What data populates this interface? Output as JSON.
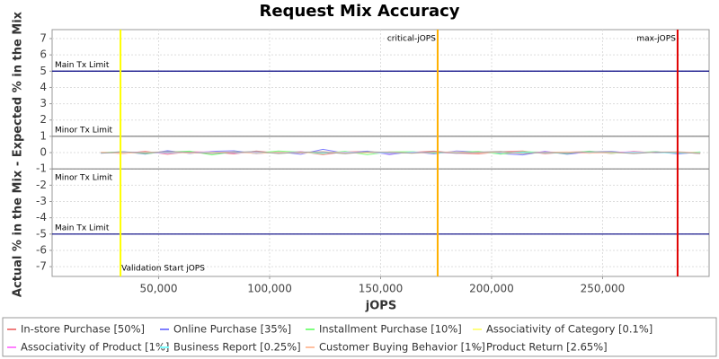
{
  "chart_data": {
    "type": "line",
    "title": "Request Mix Accuracy",
    "x_label": "jOPS",
    "y_label": "Actual % in the Mix - Expected % in the Mix",
    "x": [
      24000,
      34000,
      44000,
      54000,
      64000,
      74000,
      84000,
      94000,
      104000,
      114000,
      124000,
      134000,
      144000,
      154000,
      164000,
      174000,
      184000,
      194000,
      204000,
      214000,
      224000,
      234000,
      244000,
      254000,
      264000,
      274000,
      284000,
      294000
    ],
    "series": [
      {
        "name": "In-store Purchase [50%]",
        "color": "#f08080",
        "values": [
          0.02,
          -0.05,
          0.08,
          -0.1,
          0.05,
          0.03,
          -0.08,
          0.1,
          -0.04,
          0.06,
          -0.12,
          0.04,
          0.07,
          -0.06,
          0.02,
          0.09,
          -0.03,
          -0.08,
          0.05,
          0.1,
          -0.07,
          0.03,
          0.06,
          -0.05,
          0.08,
          -0.02,
          0.04,
          -0.06
        ]
      },
      {
        "name": "Online Purchase [35%]",
        "color": "#8080ff",
        "values": [
          -0.03,
          0.06,
          -0.09,
          0.12,
          -0.05,
          0.08,
          0.11,
          -0.07,
          0.05,
          -0.1,
          0.2,
          -0.04,
          0.09,
          -0.12,
          0.06,
          -0.08,
          0.1,
          0.04,
          -0.06,
          -0.14,
          0.08,
          -0.1,
          0.05,
          0.07,
          -0.04,
          0.06,
          -0.08,
          0.03
        ]
      },
      {
        "name": "Installment Purchase [10%]",
        "color": "#80ff80",
        "values": [
          0.01,
          0.04,
          -0.06,
          0.03,
          0.09,
          -0.14,
          0.05,
          -0.02,
          0.1,
          0.03,
          -0.05,
          0.08,
          -0.13,
          0.04,
          0.06,
          -0.03,
          0.02,
          0.07,
          -0.09,
          0.05,
          0.03,
          -0.06,
          0.09,
          -0.04,
          0.02,
          0.05,
          -0.03,
          0.04
        ]
      },
      {
        "name": "Associativity of Category [0.1%]",
        "color": "#ffff80",
        "values": [
          0.0,
          0.01,
          -0.01,
          0.02,
          0.0,
          -0.02,
          0.01,
          0.0,
          0.02,
          -0.01,
          0.0,
          0.01,
          -0.02,
          0.0,
          0.01,
          0.02,
          -0.01,
          0.0,
          0.01,
          -0.02,
          0.0,
          0.01,
          0.02,
          -0.01,
          0.0,
          0.01,
          -0.01,
          0.0
        ]
      },
      {
        "name": "Associativity of Product [1%]",
        "color": "#ff80ff",
        "values": [
          -0.02,
          0.03,
          0.01,
          -0.04,
          0.02,
          0.05,
          -0.03,
          0.02,
          -0.01,
          0.04,
          -0.02,
          0.03,
          0.01,
          -0.05,
          0.03,
          0.02,
          -0.04,
          0.01,
          0.03,
          -0.02,
          0.04,
          0.01,
          -0.03,
          0.02,
          0.05,
          -0.01,
          0.02,
          -0.03
        ]
      },
      {
        "name": "Business Report [0.25%]",
        "color": "#80ffff",
        "values": [
          0.01,
          -0.02,
          0.02,
          0.0,
          -0.01,
          0.03,
          0.0,
          -0.02,
          0.01,
          0.02,
          -0.01,
          0.0,
          0.02,
          -0.02,
          0.01,
          0.0,
          0.03,
          -0.01,
          0.0,
          0.02,
          -0.02,
          0.01,
          0.0,
          -0.01,
          0.02,
          0.0,
          -0.02,
          0.01
        ]
      },
      {
        "name": "Customer Buying Behavior [1%]",
        "color": "#ffc0a0",
        "values": [
          0.03,
          -0.04,
          0.02,
          0.05,
          -0.03,
          0.01,
          0.04,
          -0.05,
          0.02,
          -0.02,
          0.06,
          -0.03,
          0.01,
          0.04,
          -0.04,
          0.02,
          0.05,
          -0.02,
          0.03,
          -0.05,
          0.02,
          0.04,
          -0.03,
          0.01,
          -0.04,
          0.03,
          0.05,
          -0.02
        ]
      },
      {
        "name": "Product Return [2.65%]",
        "color": "#a0a0a0",
        "values": [
          -0.04,
          0.05,
          -0.02,
          0.06,
          0.03,
          -0.05,
          0.02,
          0.07,
          -0.06,
          0.03,
          0.04,
          -0.07,
          0.05,
          0.02,
          -0.03,
          0.06,
          -0.04,
          0.03,
          0.07,
          -0.05,
          0.02,
          -0.03,
          0.06,
          0.04,
          -0.06,
          0.03,
          0.02,
          -0.05
        ]
      }
    ],
    "limits": [
      {
        "label": "Main Tx Limit",
        "value": 5,
        "color": "#000080"
      },
      {
        "label": "Minor Tx Limit",
        "value": 1,
        "color": "#808080"
      },
      {
        "label": "Minor Tx Limit",
        "value": -1,
        "color": "#808080"
      },
      {
        "label": "Main Tx Limit",
        "value": -5,
        "color": "#000080"
      }
    ],
    "markers": [
      {
        "label": "Validation Start jOPS",
        "value": 32800,
        "color": "#ffff00"
      },
      {
        "label": "critical-jOPS",
        "value": 175700,
        "color": "#ffb000"
      },
      {
        "label": "max-jOPS",
        "value": 283800,
        "color": "#e00000"
      }
    ],
    "xlim": [
      2000,
      298000
    ],
    "ylim": [
      -7.6,
      7.55
    ],
    "xticks": [
      {
        "value": 50000,
        "label": "50,000"
      },
      {
        "value": 100000,
        "label": "100,000"
      },
      {
        "value": 150000,
        "label": "150,000"
      },
      {
        "value": 200000,
        "label": "200,000"
      },
      {
        "value": 250000,
        "label": "250,000"
      }
    ],
    "yticks": [
      -7,
      -6,
      -5,
      -4,
      -3,
      -2,
      -1,
      0,
      1,
      2,
      3,
      4,
      5,
      6,
      7
    ],
    "grid": true
  }
}
